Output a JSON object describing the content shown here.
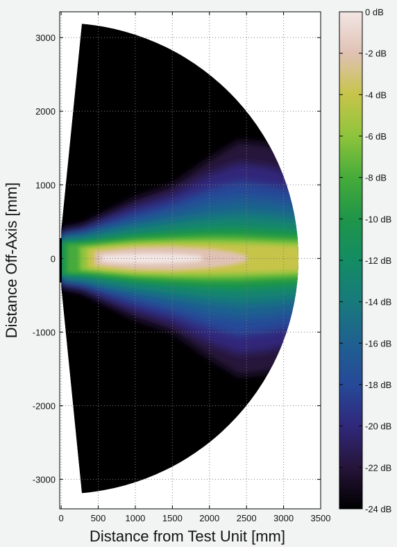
{
  "chart_data": {
    "type": "heatmap",
    "title": "",
    "xlabel": "Distance from Test Unit [mm]",
    "ylabel": "Distance Off-Axis [mm]",
    "xlim": [
      -20,
      3500
    ],
    "ylim": [
      -3400,
      3350
    ],
    "x_ticks": [
      "0",
      "500",
      "1000",
      "1500",
      "2000",
      "2500",
      "3000",
      "3500"
    ],
    "y_ticks": [
      "3000",
      "2000",
      "1000",
      "0",
      "-1000",
      "-2000",
      "-3000"
    ],
    "grid": true,
    "colorbar": {
      "range": [
        -24,
        0
      ],
      "unit": "dB",
      "tick_labels": [
        "0 dB",
        "-2 dB",
        "-4 dB",
        "-6 dB",
        "-8 dB",
        "-10 dB",
        "-12 dB",
        "-14 dB",
        "-16 dB",
        "-18 dB",
        "-20 dB",
        "-22 dB",
        "-24 dB"
      ]
    },
    "field": {
      "sweep_radius_mm": 3200,
      "sweep_half_angle_deg": 85,
      "background_level_db": -24,
      "beam_center_level_db": 0,
      "beam_end_level_db": -4
    },
    "colors": {
      "0": "#f2e6e4",
      "-2": "#e0c2b4",
      "-4": "#c6c44a",
      "-6": "#8ec43c",
      "-8": "#46ab3a",
      "-10": "#1f9549",
      "-12": "#138c63",
      "-14": "#187a7c",
      "-16": "#1f6090",
      "-18": "#264998",
      "-20": "#30287a",
      "-22": "#26143a",
      "-24": "#000000"
    }
  }
}
